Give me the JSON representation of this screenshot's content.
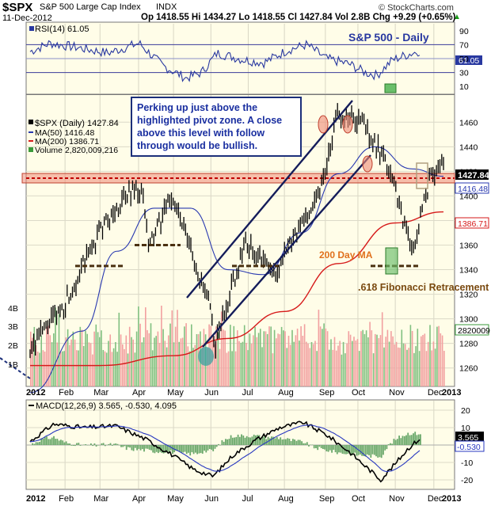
{
  "header": {
    "symbol": "$SPX",
    "name": "S&P 500 Large Cap Index",
    "exchange": "INDX",
    "watermark": "© StockCharts.com",
    "date": "11-Dec-2012",
    "ohlc": "Op 1418.55  Hi 1434.27  Lo 1418.55  Cl 1427.84  Vol 2.8B  Chg +9.29 (+0.65%)",
    "up_arrow": "▲"
  },
  "rsi_panel": {
    "label": "RSI(14) 61.05",
    "title": "S&P 500 - Daily",
    "ticks": [
      90,
      70,
      50,
      30,
      10
    ],
    "current_label": "61.05",
    "lines": [
      70,
      50,
      30
    ]
  },
  "price_panel": {
    "legend": {
      "spx": "$SPX (Daily) 1427.84",
      "ma50": "MA(50) 1416.48",
      "ma200": "MA(200) 1386.71",
      "volume": "Volume 2,820,009,216"
    },
    "annotation": "Perking up just above the highlighted pivot zone. A close above this level with follow through would be bullish.",
    "ma200_label": "200 Day MA",
    "fib_label": ".618 Fibonacci Retracement",
    "price_ticks": [
      1460,
      1440,
      1420,
      1400,
      1380,
      1360,
      1340,
      1320,
      1300,
      1280,
      1260
    ],
    "volume_ticks": [
      "4B",
      "3B",
      "2B",
      "1B"
    ],
    "right_labels": {
      "close": "1427.84",
      "ma50": "1416.48",
      "ma200": "1386.71",
      "volume": "2820009"
    }
  },
  "macd_panel": {
    "label": "MACD(12,26,9) 3.565, -0.530, 4.095",
    "ticks": [
      20,
      10,
      0,
      -10,
      -20
    ],
    "right_labels": [
      "3.565",
      "-0.530"
    ]
  },
  "x_axis": {
    "labels": [
      "2012",
      "Feb",
      "Mar",
      "Apr",
      "May",
      "Jun",
      "Jul",
      "Aug",
      "Sep",
      "Oct",
      "Nov",
      "Dec",
      "2013"
    ]
  },
  "colors": {
    "panel_bg": "#fffde8",
    "rsi_line": "#2838a0",
    "price": "#000000",
    "ma50": "#2838b0",
    "ma200": "#d61a1a",
    "up_volume": "#f2a0a0",
    "down_volume": "#80c080",
    "pivot_zone": "#ee8a77",
    "annotation_text": "#1a2fa0",
    "label_orange": "#e0701c",
    "fib_text": "#7a4a10"
  },
  "chart_data": {
    "type": "line",
    "title": "S&P 500 - Daily",
    "x_months": [
      "2012",
      "Feb",
      "Mar",
      "Apr",
      "May",
      "Jun",
      "Jul",
      "Aug",
      "Sep",
      "Oct",
      "Nov",
      "Dec"
    ],
    "ylim": [
      1245,
      1475
    ],
    "series": [
      {
        "name": "$SPX",
        "x": [
          "2012-01-03",
          "2012-01-31",
          "2012-02-29",
          "2012-03-30",
          "2012-04-06",
          "2012-04-10",
          "2012-04-30",
          "2012-05-31",
          "2012-06-04",
          "2012-06-29",
          "2012-07-24",
          "2012-08-31",
          "2012-09-14",
          "2012-10-05",
          "2012-10-31",
          "2012-11-15",
          "2012-11-30",
          "2012-12-11"
        ],
        "values": [
          1277,
          1310,
          1370,
          1408,
          1398,
          1358,
          1400,
          1310,
          1278,
          1362,
          1336,
          1406,
          1465,
          1461,
          1412,
          1353,
          1416,
          1428
        ]
      },
      {
        "name": "MA(50)",
        "x": [
          "2012-01-03",
          "2012-02-15",
          "2012-03-15",
          "2012-04-15",
          "2012-05-15",
          "2012-06-15",
          "2012-07-15",
          "2012-08-15",
          "2012-09-15",
          "2012-10-15",
          "2012-11-15",
          "2012-12-11"
        ],
        "values": [
          1240,
          1290,
          1355,
          1390,
          1390,
          1340,
          1336,
          1370,
          1418,
          1440,
          1422,
          1416
        ]
      },
      {
        "name": "MA(200)",
        "x": [
          "2012-01-03",
          "2012-03-01",
          "2012-05-01",
          "2012-06-15",
          "2012-08-01",
          "2012-09-15",
          "2012-11-01",
          "2012-12-11"
        ],
        "values": [
          1262,
          1262,
          1270,
          1284,
          1306,
          1345,
          1378,
          1387
        ]
      }
    ],
    "pivot_zone": [
      1418,
      1430
    ],
    "fib_618": 1343,
    "support_levels": [
      1343,
      1360
    ],
    "rsi": {
      "ylim": [
        0,
        100
      ],
      "current": 61.05
    },
    "macd": {
      "ylim": [
        -25,
        25
      ],
      "macd": 3.565,
      "signal": -0.53,
      "histogram": 4.095
    }
  }
}
